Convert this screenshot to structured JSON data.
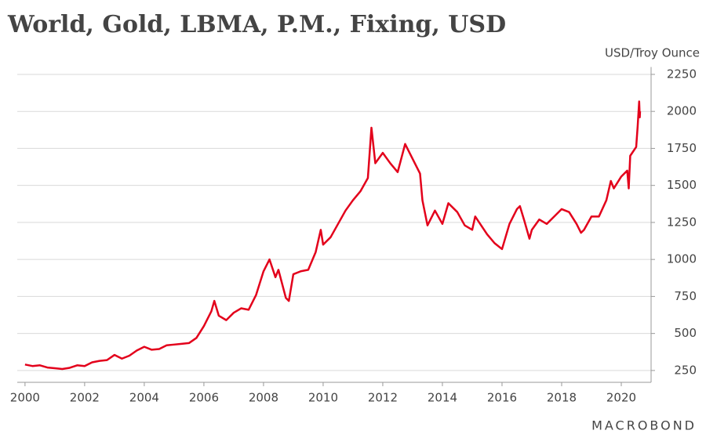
{
  "chart_data": {
    "type": "line",
    "title": "World, Gold, LBMA, P.M., Fixing, USD",
    "y_label": "USD/Troy Ounce",
    "source": "MACROBOND",
    "xlim": [
      1999.74,
      2021.0
    ],
    "xticks": [
      2000,
      2002,
      2004,
      2006,
      2008,
      2010,
      2012,
      2014,
      2016,
      2018,
      2020
    ],
    "ylim": [
      170,
      2300
    ],
    "yticks": [
      250,
      500,
      750,
      1000,
      1250,
      1500,
      1750,
      2000,
      2250
    ],
    "grid": true,
    "x": [
      2000.0,
      2000.25,
      2000.5,
      2000.75,
      2001.0,
      2001.25,
      2001.5,
      2001.75,
      2002.0,
      2002.25,
      2002.5,
      2002.75,
      2003.0,
      2003.25,
      2003.5,
      2003.75,
      2004.0,
      2004.25,
      2004.5,
      2004.75,
      2005.0,
      2005.25,
      2005.5,
      2005.75,
      2006.0,
      2006.25,
      2006.35,
      2006.5,
      2006.75,
      2007.0,
      2007.25,
      2007.5,
      2007.75,
      2008.0,
      2008.2,
      2008.4,
      2008.5,
      2008.75,
      2008.85,
      2009.0,
      2009.25,
      2009.5,
      2009.75,
      2009.92,
      2010.0,
      2010.25,
      2010.5,
      2010.75,
      2011.0,
      2011.25,
      2011.5,
      2011.62,
      2011.75,
      2012.0,
      2012.25,
      2012.5,
      2012.75,
      2013.0,
      2013.25,
      2013.33,
      2013.5,
      2013.75,
      2014.0,
      2014.2,
      2014.5,
      2014.75,
      2015.0,
      2015.1,
      2015.5,
      2015.75,
      2016.0,
      2016.25,
      2016.5,
      2016.6,
      2016.75,
      2016.92,
      2017.0,
      2017.25,
      2017.5,
      2017.75,
      2018.0,
      2018.25,
      2018.5,
      2018.65,
      2018.75,
      2019.0,
      2019.25,
      2019.5,
      2019.65,
      2019.75,
      2020.0,
      2020.2,
      2020.25,
      2020.3,
      2020.5,
      2020.55,
      2020.6,
      2020.62,
      2020.63
    ],
    "series": [
      {
        "name": "Gold",
        "color": "#e3001b",
        "values": [
          290,
          280,
          285,
          270,
          265,
          260,
          268,
          285,
          280,
          305,
          315,
          320,
          355,
          330,
          350,
          385,
          410,
          390,
          395,
          420,
          425,
          430,
          435,
          470,
          550,
          650,
          720,
          620,
          590,
          640,
          670,
          660,
          760,
          920,
          1000,
          880,
          930,
          740,
          720,
          900,
          920,
          930,
          1050,
          1200,
          1100,
          1150,
          1240,
          1330,
          1400,
          1460,
          1550,
          1890,
          1650,
          1720,
          1650,
          1590,
          1780,
          1680,
          1580,
          1400,
          1230,
          1330,
          1240,
          1380,
          1320,
          1230,
          1200,
          1290,
          1170,
          1110,
          1070,
          1240,
          1340,
          1360,
          1260,
          1140,
          1200,
          1270,
          1240,
          1290,
          1340,
          1320,
          1240,
          1180,
          1200,
          1290,
          1290,
          1400,
          1530,
          1480,
          1560,
          1600,
          1480,
          1700,
          1760,
          1900,
          2067,
          1960,
          2000
        ]
      }
    ]
  }
}
